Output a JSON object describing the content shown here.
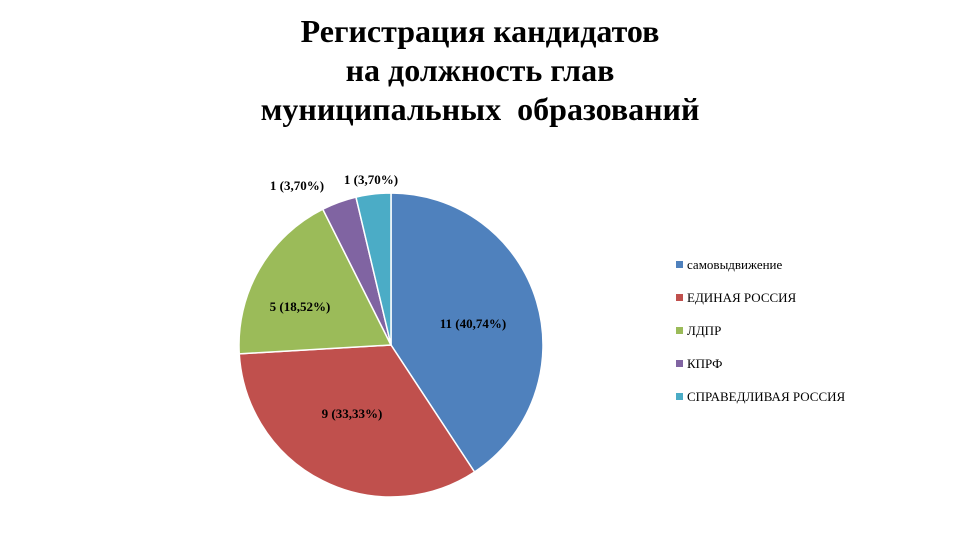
{
  "chart_data": {
    "type": "pie",
    "title": [
      "Регистрация кандидатов",
      "на должность глав",
      "муниципальных  образований"
    ],
    "legend_position": "right",
    "slices": [
      {
        "name": "самовыдвижение",
        "value": 11,
        "label": "11 (40,74%)",
        "color": "#4F81BD"
      },
      {
        "name": "ЕДИНАЯ РОССИЯ",
        "value": 9,
        "label": "9 (33,33%)",
        "color": "#C0504D"
      },
      {
        "name": "ЛДПР",
        "value": 5,
        "label": "5 (18,52%)",
        "color": "#9BBB59"
      },
      {
        "name": "КПРФ",
        "value": 1,
        "label": "1 (3,70%)",
        "color": "#8064A2"
      },
      {
        "name": "СПРАВЕДЛИВАЯ РОССИЯ",
        "value": 1,
        "label": "1 (3,70%)",
        "color": "#4BACC6"
      }
    ]
  }
}
